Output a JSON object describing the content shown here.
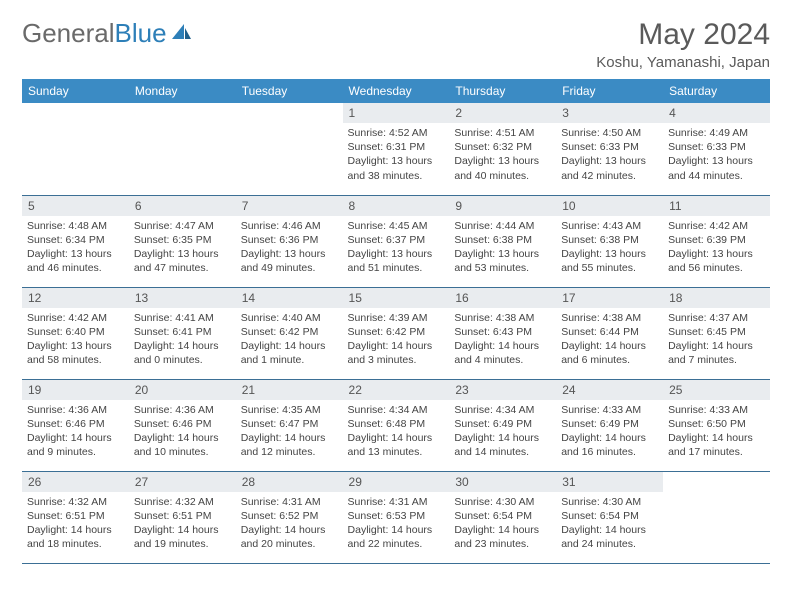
{
  "logo": {
    "text1": "General",
    "text2": "Blue"
  },
  "title": "May 2024",
  "location": "Koshu, Yamanashi, Japan",
  "colors": {
    "header_bg": "#3b8bc4",
    "header_text": "#ffffff",
    "daynum_bg": "#e9ecef",
    "row_border": "#3b6f95",
    "logo_gray": "#6a6a6a",
    "logo_blue": "#2d7fb8"
  },
  "day_labels": [
    "Sunday",
    "Monday",
    "Tuesday",
    "Wednesday",
    "Thursday",
    "Friday",
    "Saturday"
  ],
  "weeks": [
    [
      {
        "n": "",
        "lines": []
      },
      {
        "n": "",
        "lines": []
      },
      {
        "n": "",
        "lines": []
      },
      {
        "n": "1",
        "lines": [
          "Sunrise: 4:52 AM",
          "Sunset: 6:31 PM",
          "Daylight: 13 hours and 38 minutes."
        ]
      },
      {
        "n": "2",
        "lines": [
          "Sunrise: 4:51 AM",
          "Sunset: 6:32 PM",
          "Daylight: 13 hours and 40 minutes."
        ]
      },
      {
        "n": "3",
        "lines": [
          "Sunrise: 4:50 AM",
          "Sunset: 6:33 PM",
          "Daylight: 13 hours and 42 minutes."
        ]
      },
      {
        "n": "4",
        "lines": [
          "Sunrise: 4:49 AM",
          "Sunset: 6:33 PM",
          "Daylight: 13 hours and 44 minutes."
        ]
      }
    ],
    [
      {
        "n": "5",
        "lines": [
          "Sunrise: 4:48 AM",
          "Sunset: 6:34 PM",
          "Daylight: 13 hours and 46 minutes."
        ]
      },
      {
        "n": "6",
        "lines": [
          "Sunrise: 4:47 AM",
          "Sunset: 6:35 PM",
          "Daylight: 13 hours and 47 minutes."
        ]
      },
      {
        "n": "7",
        "lines": [
          "Sunrise: 4:46 AM",
          "Sunset: 6:36 PM",
          "Daylight: 13 hours and 49 minutes."
        ]
      },
      {
        "n": "8",
        "lines": [
          "Sunrise: 4:45 AM",
          "Sunset: 6:37 PM",
          "Daylight: 13 hours and 51 minutes."
        ]
      },
      {
        "n": "9",
        "lines": [
          "Sunrise: 4:44 AM",
          "Sunset: 6:38 PM",
          "Daylight: 13 hours and 53 minutes."
        ]
      },
      {
        "n": "10",
        "lines": [
          "Sunrise: 4:43 AM",
          "Sunset: 6:38 PM",
          "Daylight: 13 hours and 55 minutes."
        ]
      },
      {
        "n": "11",
        "lines": [
          "Sunrise: 4:42 AM",
          "Sunset: 6:39 PM",
          "Daylight: 13 hours and 56 minutes."
        ]
      }
    ],
    [
      {
        "n": "12",
        "lines": [
          "Sunrise: 4:42 AM",
          "Sunset: 6:40 PM",
          "Daylight: 13 hours and 58 minutes."
        ]
      },
      {
        "n": "13",
        "lines": [
          "Sunrise: 4:41 AM",
          "Sunset: 6:41 PM",
          "Daylight: 14 hours and 0 minutes."
        ]
      },
      {
        "n": "14",
        "lines": [
          "Sunrise: 4:40 AM",
          "Sunset: 6:42 PM",
          "Daylight: 14 hours and 1 minute."
        ]
      },
      {
        "n": "15",
        "lines": [
          "Sunrise: 4:39 AM",
          "Sunset: 6:42 PM",
          "Daylight: 14 hours and 3 minutes."
        ]
      },
      {
        "n": "16",
        "lines": [
          "Sunrise: 4:38 AM",
          "Sunset: 6:43 PM",
          "Daylight: 14 hours and 4 minutes."
        ]
      },
      {
        "n": "17",
        "lines": [
          "Sunrise: 4:38 AM",
          "Sunset: 6:44 PM",
          "Daylight: 14 hours and 6 minutes."
        ]
      },
      {
        "n": "18",
        "lines": [
          "Sunrise: 4:37 AM",
          "Sunset: 6:45 PM",
          "Daylight: 14 hours and 7 minutes."
        ]
      }
    ],
    [
      {
        "n": "19",
        "lines": [
          "Sunrise: 4:36 AM",
          "Sunset: 6:46 PM",
          "Daylight: 14 hours and 9 minutes."
        ]
      },
      {
        "n": "20",
        "lines": [
          "Sunrise: 4:36 AM",
          "Sunset: 6:46 PM",
          "Daylight: 14 hours and 10 minutes."
        ]
      },
      {
        "n": "21",
        "lines": [
          "Sunrise: 4:35 AM",
          "Sunset: 6:47 PM",
          "Daylight: 14 hours and 12 minutes."
        ]
      },
      {
        "n": "22",
        "lines": [
          "Sunrise: 4:34 AM",
          "Sunset: 6:48 PM",
          "Daylight: 14 hours and 13 minutes."
        ]
      },
      {
        "n": "23",
        "lines": [
          "Sunrise: 4:34 AM",
          "Sunset: 6:49 PM",
          "Daylight: 14 hours and 14 minutes."
        ]
      },
      {
        "n": "24",
        "lines": [
          "Sunrise: 4:33 AM",
          "Sunset: 6:49 PM",
          "Daylight: 14 hours and 16 minutes."
        ]
      },
      {
        "n": "25",
        "lines": [
          "Sunrise: 4:33 AM",
          "Sunset: 6:50 PM",
          "Daylight: 14 hours and 17 minutes."
        ]
      }
    ],
    [
      {
        "n": "26",
        "lines": [
          "Sunrise: 4:32 AM",
          "Sunset: 6:51 PM",
          "Daylight: 14 hours and 18 minutes."
        ]
      },
      {
        "n": "27",
        "lines": [
          "Sunrise: 4:32 AM",
          "Sunset: 6:51 PM",
          "Daylight: 14 hours and 19 minutes."
        ]
      },
      {
        "n": "28",
        "lines": [
          "Sunrise: 4:31 AM",
          "Sunset: 6:52 PM",
          "Daylight: 14 hours and 20 minutes."
        ]
      },
      {
        "n": "29",
        "lines": [
          "Sunrise: 4:31 AM",
          "Sunset: 6:53 PM",
          "Daylight: 14 hours and 22 minutes."
        ]
      },
      {
        "n": "30",
        "lines": [
          "Sunrise: 4:30 AM",
          "Sunset: 6:54 PM",
          "Daylight: 14 hours and 23 minutes."
        ]
      },
      {
        "n": "31",
        "lines": [
          "Sunrise: 4:30 AM",
          "Sunset: 6:54 PM",
          "Daylight: 14 hours and 24 minutes."
        ]
      },
      {
        "n": "",
        "lines": []
      }
    ]
  ]
}
